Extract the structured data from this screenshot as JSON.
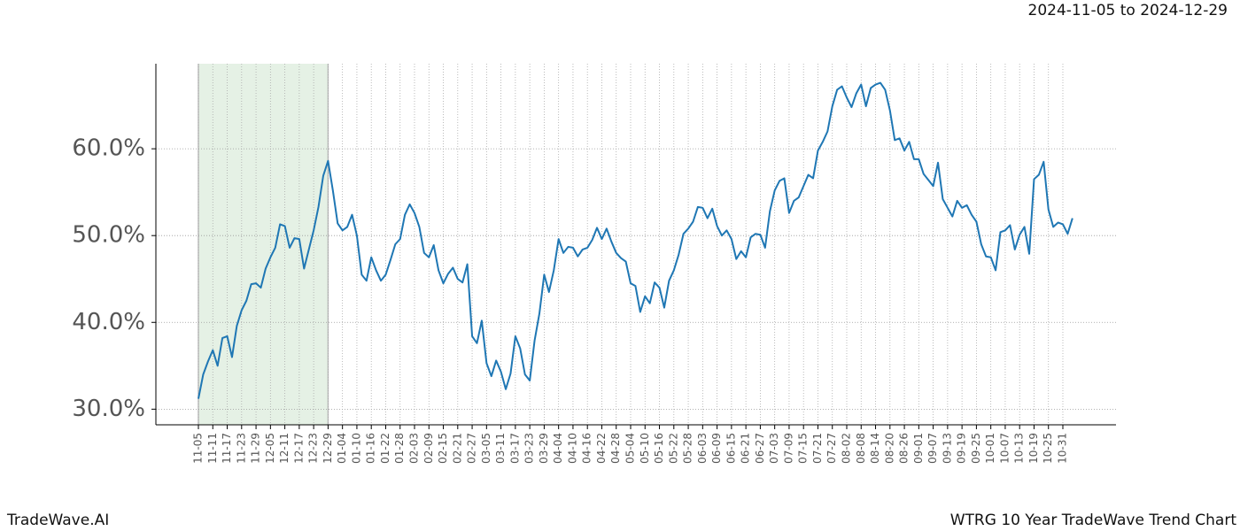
{
  "chart_data": {
    "type": "line",
    "title": "WTRG 10 Year TradeWave Trend Chart",
    "date_range": "2024-11-05 to 2024-12-29",
    "brand": "TradeWave.AI",
    "categories": [
      "11-05",
      null,
      null,
      "11-11",
      null,
      null,
      "11-17",
      null,
      null,
      "11-23",
      null,
      null,
      "11-29",
      null,
      null,
      "12-05",
      null,
      null,
      "12-11",
      null,
      null,
      "12-17",
      null,
      null,
      "12-23",
      null,
      null,
      "12-29",
      null,
      null,
      "01-04",
      null,
      null,
      "01-10",
      null,
      null,
      "01-16",
      null,
      null,
      "01-22",
      null,
      null,
      "01-28",
      null,
      null,
      "02-03",
      null,
      null,
      "02-09",
      null,
      null,
      "02-15",
      null,
      null,
      "02-21",
      null,
      null,
      "02-27",
      null,
      null,
      "03-05",
      null,
      null,
      "03-11",
      null,
      null,
      "03-17",
      null,
      null,
      "03-23",
      null,
      null,
      "03-29",
      null,
      null,
      "04-04",
      null,
      null,
      "04-10",
      null,
      null,
      "04-16",
      null,
      null,
      "04-22",
      null,
      null,
      "04-28",
      null,
      null,
      "05-04",
      null,
      null,
      "05-10",
      null,
      null,
      "05-16",
      null,
      null,
      "05-22",
      null,
      null,
      "05-28",
      null,
      null,
      "06-03",
      null,
      null,
      "06-09",
      null,
      null,
      "06-15",
      null,
      null,
      "06-21",
      null,
      null,
      "06-27",
      null,
      null,
      "07-03",
      null,
      null,
      "07-09",
      null,
      null,
      "07-15",
      null,
      null,
      "07-21",
      null,
      null,
      "07-27",
      null,
      null,
      "08-02",
      null,
      null,
      "08-08",
      null,
      null,
      "08-14",
      null,
      null,
      "08-20",
      null,
      null,
      "08-26",
      null,
      null,
      "09-01",
      null,
      null,
      "09-07",
      null,
      null,
      "09-13",
      null,
      null,
      "09-19",
      null,
      null,
      "09-25",
      null,
      null,
      "10-01",
      null,
      null,
      "10-07",
      null,
      null,
      "10-13",
      null,
      null,
      "10-19",
      null,
      null,
      "10-25",
      null,
      null,
      "10-31",
      null,
      null
    ],
    "series": [
      {
        "color": "#1f77b4",
        "values": [
          31.2,
          34.0,
          35.5,
          36.8,
          35.0,
          38.2,
          38.4,
          36.0,
          39.6,
          41.4,
          42.5,
          44.4,
          44.5,
          44.0,
          46.2,
          47.5,
          48.6,
          51.3,
          51.1,
          48.6,
          49.7,
          49.6,
          46.2,
          48.4,
          50.6,
          53.3,
          56.9,
          58.6,
          55.2,
          51.4,
          50.6,
          51.0,
          52.4,
          50.0,
          45.5,
          44.8,
          47.5,
          46.0,
          44.8,
          45.5,
          47.2,
          49.0,
          49.6,
          52.4,
          53.6,
          52.6,
          51.0,
          48.0,
          47.5,
          48.9,
          46.0,
          44.5,
          45.6,
          46.3,
          45.0,
          44.6,
          46.7,
          38.4,
          37.6,
          40.2,
          35.3,
          33.8,
          35.6,
          34.3,
          32.3,
          34.1,
          38.4,
          37.0,
          34.0,
          33.3,
          37.9,
          41.0,
          45.5,
          43.5,
          46.0,
          49.6,
          48.0,
          48.7,
          48.6,
          47.6,
          48.4,
          48.6,
          49.5,
          50.9,
          49.6,
          50.8,
          49.3,
          48.0,
          47.4,
          47.0,
          44.5,
          44.2,
          41.2,
          43.0,
          42.2,
          44.6,
          44.0,
          41.7,
          44.8,
          46.0,
          47.8,
          50.2,
          50.8,
          51.6,
          53.3,
          53.2,
          52.0,
          53.1,
          51.1,
          50.0,
          50.6,
          49.6,
          47.3,
          48.2,
          47.5,
          49.8,
          50.2,
          50.1,
          48.6,
          52.8,
          55.2,
          56.3,
          56.6,
          52.6,
          54.0,
          54.4,
          55.7,
          57.0,
          56.6,
          59.8,
          60.8,
          62.0,
          64.9,
          66.8,
          67.2,
          65.9,
          64.8,
          66.4,
          67.4,
          64.9,
          67.0,
          67.4,
          67.6,
          66.8,
          64.4,
          61.0,
          61.2,
          59.8,
          60.8,
          58.8,
          58.8,
          57.1,
          56.4,
          55.7,
          58.4,
          54.2,
          53.2,
          52.2,
          54.0,
          53.2,
          53.5,
          52.4,
          51.6,
          49.0,
          47.6,
          47.5,
          46.0,
          50.4,
          50.6,
          51.2,
          48.4,
          50.1,
          51.0,
          47.9,
          56.5,
          57.0,
          58.5,
          53.0,
          51.0,
          51.5,
          51.3,
          50.2,
          52.0
        ]
      }
    ],
    "ylim": [
      28.2,
      69.8
    ],
    "yticks": [
      {
        "value": 30,
        "label": "30.0%"
      },
      {
        "value": 40,
        "label": "40.0%"
      },
      {
        "value": 50,
        "label": "50.0%"
      },
      {
        "value": 60,
        "label": "60.0%"
      }
    ],
    "grid": true,
    "shaded_span": [
      0,
      27
    ],
    "shade_color": "#e5f1e5"
  }
}
